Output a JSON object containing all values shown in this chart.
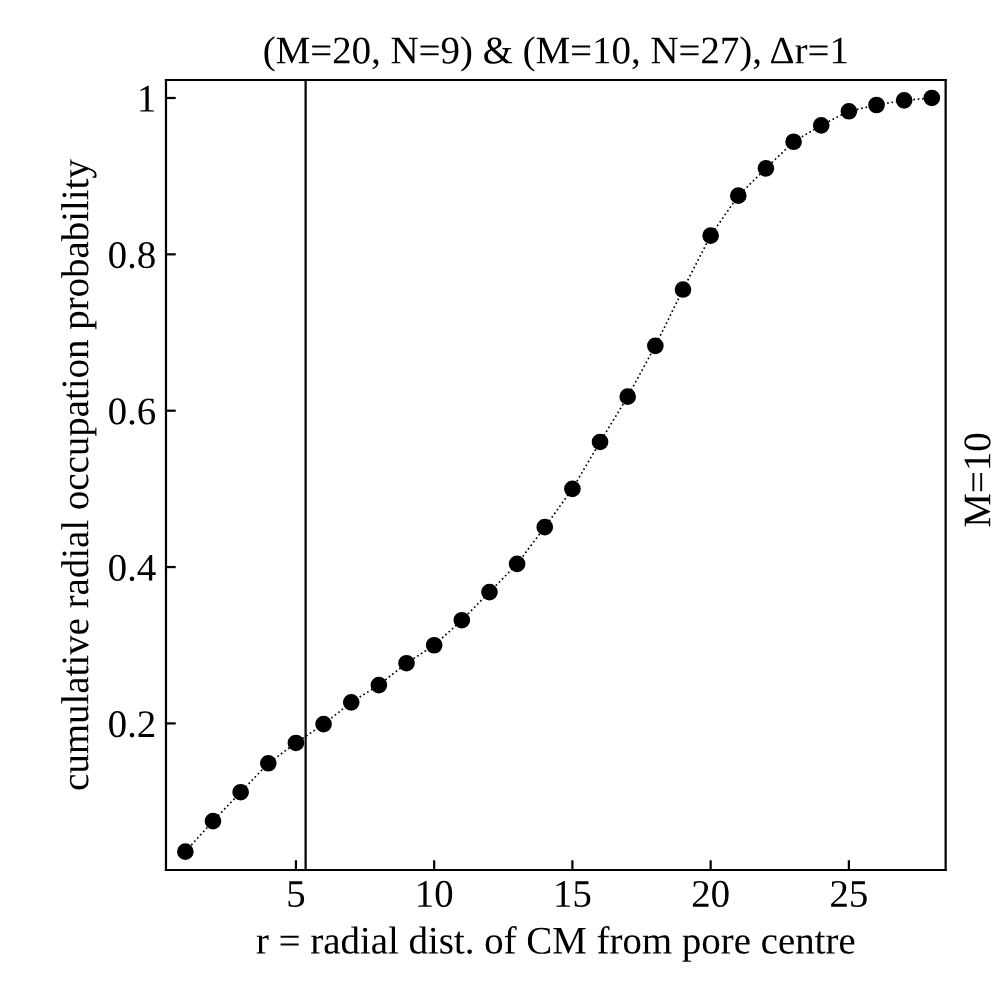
{
  "chart_data": {
    "type": "line",
    "title": "(M=20, N=9) & (M=10, N=27), Δr=1",
    "xlabel": "r = radial dist. of CM from pore centre",
    "ylabel": "cumulative radial occupation probability",
    "annotations": [
      "M=10"
    ],
    "x": [
      1,
      2,
      3,
      4,
      5,
      6,
      7,
      8,
      9,
      10,
      11,
      12,
      13,
      14,
      15,
      16,
      17,
      18,
      19,
      20,
      21,
      22,
      23,
      24,
      25,
      26,
      27,
      28
    ],
    "series": [
      {
        "color": "#000000",
        "values": [
          0.036,
          0.075,
          0.112,
          0.149,
          0.175,
          0.199,
          0.227,
          0.249,
          0.277,
          0.3,
          0.332,
          0.368,
          0.404,
          0.451,
          0.5,
          0.56,
          0.618,
          0.683,
          0.755,
          0.824,
          0.875,
          0.91,
          0.944,
          0.965,
          0.983,
          0.991,
          0.997,
          1.0
        ]
      }
    ],
    "marker": "circle",
    "line_style": "dotted",
    "grid": false,
    "legend": false,
    "xlim": [
      0.3,
      28.5
    ],
    "ylim": [
      0.0125,
      1.023
    ],
    "xticks": [
      5,
      10,
      15,
      20,
      25
    ],
    "yticks": [
      0.2,
      0.4,
      0.6,
      0.8,
      {
        "value": 1,
        "label": "1"
      }
    ],
    "ref_lines": [
      {
        "axis": "x",
        "value": 5.35,
        "color": "#000000"
      }
    ]
  }
}
